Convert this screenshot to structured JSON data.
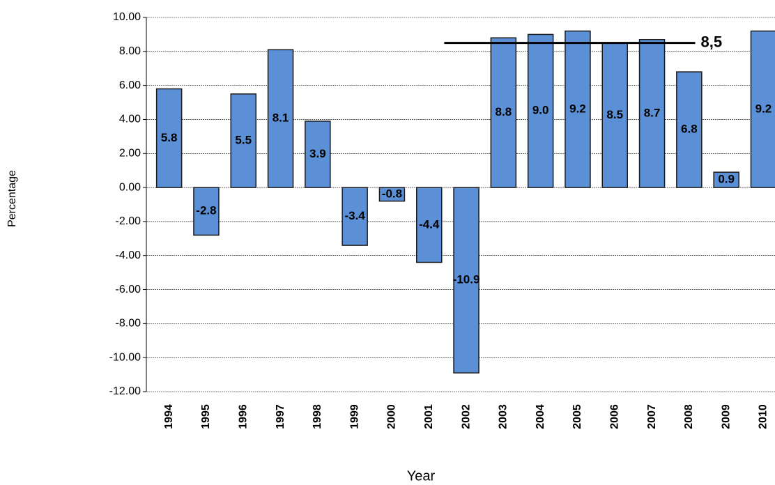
{
  "chart_data": {
    "type": "bar",
    "y_label": "Percentage",
    "x_label": "Year",
    "categories": [
      "1994",
      "1995",
      "1996",
      "1997",
      "1998",
      "1999",
      "2000",
      "2001",
      "2002",
      "2003",
      "2004",
      "2005",
      "2006",
      "2007",
      "2008",
      "2009",
      "2010"
    ],
    "values": [
      5.8,
      -2.8,
      5.5,
      8.1,
      3.9,
      -3.4,
      -0.8,
      -4.4,
      -10.9,
      8.8,
      9.0,
      9.2,
      8.5,
      8.7,
      6.8,
      0.9,
      9.2
    ],
    "value_labels": [
      "5.8",
      "-2.8",
      "5.5",
      "8.1",
      "3.9",
      "-3.4",
      "-0.8",
      "-4.4",
      "-10.9",
      "8.8",
      "9.0",
      "9.2",
      "8.5",
      "8.7",
      "6.8",
      "0.9",
      "9.2"
    ],
    "color": "#5b8fd6",
    "ylim": [
      -12,
      10
    ],
    "yticks": [
      {
        "value": -12,
        "label": "-12.00"
      },
      {
        "value": -10,
        "label": "-10.00"
      },
      {
        "value": -8,
        "label": "-8.00"
      },
      {
        "value": -6,
        "label": "-6.00"
      },
      {
        "value": -4,
        "label": "-4.00"
      },
      {
        "value": -2,
        "label": "-2.00"
      },
      {
        "value": 0,
        "label": "0.00"
      },
      {
        "value": 2,
        "label": "2.00"
      },
      {
        "value": 4,
        "label": "4.00"
      },
      {
        "value": 6,
        "label": "6.00"
      },
      {
        "value": 8,
        "label": "8.00"
      },
      {
        "value": 10,
        "label": "10.00"
      }
    ],
    "grid": true,
    "average_line": {
      "value": 8.5,
      "label": "8,5"
    }
  }
}
